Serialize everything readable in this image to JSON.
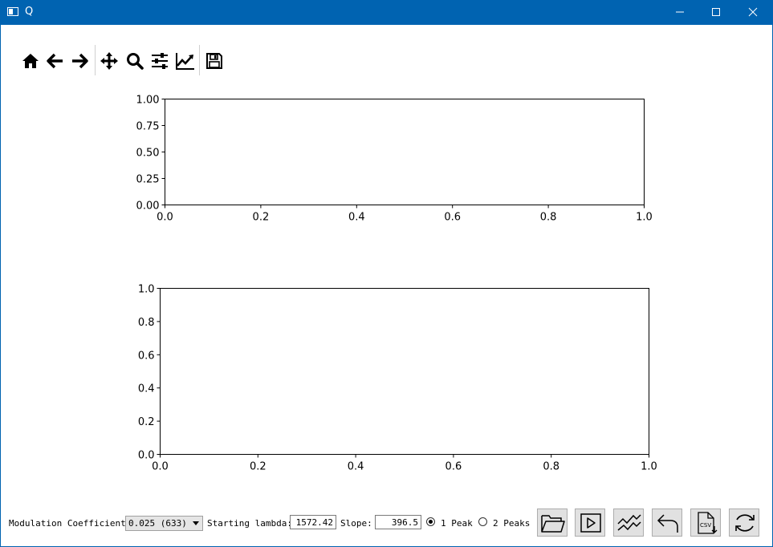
{
  "window": {
    "title": "Q",
    "minimize_icon": "minimize-icon",
    "maximize_icon": "maximize-icon",
    "close_icon": "close-icon"
  },
  "toolbar": {
    "buttons": [
      "home-icon",
      "back-arrow-icon",
      "forward-arrow-icon",
      "pan-icon",
      "zoom-icon",
      "configure-subplots-icon",
      "edit-axis-icon",
      "save-icon"
    ]
  },
  "chart_data": [
    {
      "type": "line",
      "series": [],
      "xlim": [
        0.0,
        1.0
      ],
      "ylim": [
        0.0,
        1.0
      ],
      "xticks": [
        "0.0",
        "0.2",
        "0.4",
        "0.6",
        "0.8",
        "1.0"
      ],
      "yticks": [
        "0.00",
        "0.25",
        "0.50",
        "0.75",
        "1.00"
      ],
      "grid": false
    },
    {
      "type": "line",
      "series": [],
      "xlim": [
        0.0,
        1.0
      ],
      "ylim": [
        0.0,
        1.0
      ],
      "xticks": [
        "0.0",
        "0.2",
        "0.4",
        "0.6",
        "0.8",
        "1.0"
      ],
      "yticks": [
        "0.0",
        "0.2",
        "0.4",
        "0.6",
        "0.8",
        "1.0"
      ],
      "grid": false
    }
  ],
  "controls": {
    "modulation_label": "Modulation Coefficient:",
    "modulation_value": "0.025 (633)",
    "lambda_label": "Starting lambda:",
    "lambda_value": "1572.42",
    "slope_label": "Slope:",
    "slope_value": "396.5",
    "peak1_label": "1 Peak",
    "peak2_label": "2 Peaks",
    "peak_selected": "1 Peak"
  },
  "action_buttons": [
    "open-folder-icon",
    "play-icon",
    "curves-icon",
    "undo-icon",
    "csv-export-icon",
    "refresh-icon"
  ]
}
